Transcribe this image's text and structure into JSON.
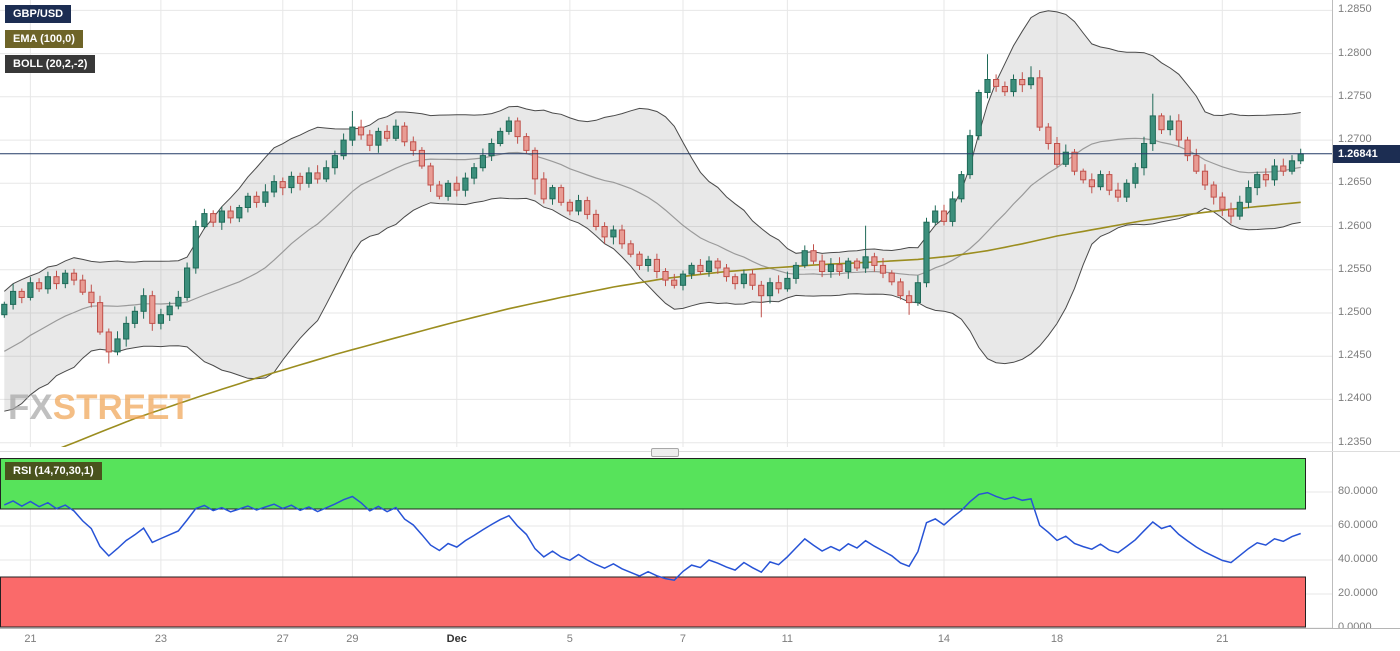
{
  "badges": {
    "symbol": "GBP/USD",
    "ema": "EMA (100,0)",
    "boll": "BOLL (20,2,-2)",
    "rsi": "RSI (14,70,30,1)"
  },
  "watermark": {
    "fx": "FX",
    "street": "STREET"
  },
  "last_price": {
    "value": 1.26841,
    "label": "1.26841"
  },
  "colors": {
    "background": "#ffffff",
    "grid": "#e7e7e7",
    "axis_line": "#bcbcbc",
    "axis_text": "#7d7d7d",
    "candle_up_fill": "#3c8f7c",
    "candle_up_stroke": "#1f6a58",
    "candle_down_fill": "#e89c94",
    "candle_down_stroke": "#c0504a",
    "boll_fill": "rgba(130,130,130,0.18)",
    "boll_line": "#4a4a4a",
    "boll_mid": "#9a9a9a",
    "ema_line": "#9b8d1f",
    "price_line": "#223a66",
    "price_badge_bg": "#1c2d52",
    "rsi_line": "#2753d6",
    "zone_green": "#57e35b",
    "zone_red": "#fa6a6a",
    "zone_border": "#222222",
    "badge_symbol_bg": "#1c2d52",
    "badge_ema_bg": "#6e6428",
    "badge_boll_bg": "#383838",
    "badge_rsi_bg": "#49531d",
    "watermark_fx": "#a6a6a6",
    "watermark_street": "#f0a352"
  },
  "chart_data": {
    "type": "candlestick",
    "symbol": "GBP/USD",
    "price_axis": {
      "min": 1.2345,
      "max": 1.2862,
      "ticks": [
        {
          "v": 1.285,
          "label": "1.2850"
        },
        {
          "v": 1.28,
          "label": "1.2800"
        },
        {
          "v": 1.275,
          "label": "1.2750"
        },
        {
          "v": 1.27,
          "label": "1.2700"
        },
        {
          "v": 1.265,
          "label": "1.2650"
        },
        {
          "v": 1.26,
          "label": "1.2600"
        },
        {
          "v": 1.255,
          "label": "1.2550"
        },
        {
          "v": 1.25,
          "label": "1.2500"
        },
        {
          "v": 1.245,
          "label": "1.2450"
        },
        {
          "v": 1.24,
          "label": "1.2400"
        },
        {
          "v": 1.235,
          "label": "1.2350"
        }
      ]
    },
    "x_ticks": [
      {
        "i": 3,
        "label": "21"
      },
      {
        "i": 18,
        "label": "23"
      },
      {
        "i": 32,
        "label": "27"
      },
      {
        "i": 40,
        "label": "29"
      },
      {
        "i": 52,
        "label": "Dec",
        "bold": true
      },
      {
        "i": 65,
        "label": "5"
      },
      {
        "i": 78,
        "label": "7"
      },
      {
        "i": 90,
        "label": "11"
      },
      {
        "i": 108,
        "label": "14"
      },
      {
        "i": 121,
        "label": "18"
      },
      {
        "i": 140,
        "label": "21"
      }
    ],
    "leadin_closes": [
      1.2398,
      1.2412,
      1.2405,
      1.2392,
      1.2415,
      1.2428,
      1.242,
      1.2442,
      1.2455,
      1.2438,
      1.2452,
      1.2468,
      1.246,
      1.2478,
      1.247,
      1.2486,
      1.2495,
      1.2488,
      1.2502,
      1.2498
    ],
    "closes": [
      1.251,
      1.2525,
      1.2518,
      1.2535,
      1.2528,
      1.2542,
      1.2534,
      1.2546,
      1.2538,
      1.2524,
      1.2512,
      1.2478,
      1.2455,
      1.247,
      1.2488,
      1.2502,
      1.252,
      1.2488,
      1.2498,
      1.2508,
      1.2518,
      1.2552,
      1.26,
      1.2615,
      1.2605,
      1.2618,
      1.261,
      1.2622,
      1.2635,
      1.2628,
      1.264,
      1.2652,
      1.2645,
      1.2658,
      1.265,
      1.2662,
      1.2655,
      1.2668,
      1.2682,
      1.27,
      1.2715,
      1.2706,
      1.2694,
      1.271,
      1.2702,
      1.2716,
      1.2698,
      1.2688,
      1.267,
      1.2648,
      1.2635,
      1.265,
      1.2642,
      1.2656,
      1.2668,
      1.2682,
      1.2696,
      1.271,
      1.2722,
      1.2704,
      1.2688,
      1.2655,
      1.2632,
      1.2645,
      1.2628,
      1.2618,
      1.263,
      1.2614,
      1.26,
      1.2588,
      1.2596,
      1.258,
      1.2568,
      1.2555,
      1.2562,
      1.2548,
      1.2538,
      1.2532,
      1.2545,
      1.2555,
      1.2548,
      1.256,
      1.2552,
      1.2542,
      1.2534,
      1.2545,
      1.2532,
      1.252,
      1.2535,
      1.2528,
      1.254,
      1.2555,
      1.2572,
      1.256,
      1.2548,
      1.2556,
      1.2548,
      1.256,
      1.2552,
      1.2565,
      1.2555,
      1.2546,
      1.2536,
      1.252,
      1.2512,
      1.2535,
      1.2605,
      1.2618,
      1.2606,
      1.2632,
      1.266,
      1.2705,
      1.2755,
      1.277,
      1.2762,
      1.2756,
      1.277,
      1.2764,
      1.2772,
      1.2715,
      1.2696,
      1.2672,
      1.2686,
      1.2664,
      1.2654,
      1.2646,
      1.266,
      1.2642,
      1.2634,
      1.265,
      1.2668,
      1.2696,
      1.2728,
      1.2712,
      1.2722,
      1.27,
      1.2682,
      1.2664,
      1.2648,
      1.2634,
      1.262,
      1.2612,
      1.2628,
      1.2645,
      1.266,
      1.2654,
      1.267,
      1.2664,
      1.2676,
      1.26841
    ],
    "extra_wicks": {
      "12": [
        0,
        0.0008
      ],
      "40": [
        0.0012,
        0
      ],
      "61": [
        0,
        0.001
      ],
      "87": [
        0,
        0.002
      ],
      "99": [
        0.003,
        0
      ],
      "104": [
        0,
        0.0008
      ],
      "113": [
        0.0026,
        0
      ],
      "118": [
        0.0008,
        0
      ],
      "132": [
        0.0018,
        0
      ]
    },
    "indicators": {
      "ema_period": 100,
      "ema_points": [
        [
          0,
          1.2318
        ],
        [
          8,
          1.235
        ],
        [
          15,
          1.2378
        ],
        [
          22,
          1.2402
        ],
        [
          30,
          1.2428
        ],
        [
          38,
          1.2452
        ],
        [
          46,
          1.2474
        ],
        [
          52,
          1.249
        ],
        [
          58,
          1.2505
        ],
        [
          64,
          1.2518
        ],
        [
          70,
          1.253
        ],
        [
          76,
          1.254
        ],
        [
          82,
          1.2547
        ],
        [
          88,
          1.2552
        ],
        [
          94,
          1.2556
        ],
        [
          100,
          1.2559
        ],
        [
          105,
          1.2562
        ],
        [
          109,
          1.2566
        ],
        [
          113,
          1.2572
        ],
        [
          117,
          1.258
        ],
        [
          121,
          1.2589
        ],
        [
          126,
          1.2598
        ],
        [
          131,
          1.2607
        ],
        [
          136,
          1.2614
        ],
        [
          141,
          1.262
        ],
        [
          145,
          1.2624
        ],
        [
          149,
          1.2628
        ]
      ],
      "boll": {
        "period": 20,
        "dev": 2
      },
      "rsi": {
        "period": 14,
        "overbought": 70,
        "oversold": 30,
        "axis_ticks": [
          {
            "v": 80,
            "label": "80.0000"
          },
          {
            "v": 60,
            "label": "60.0000"
          },
          {
            "v": 40,
            "label": "40.0000"
          },
          {
            "v": 20,
            "label": "20.0000"
          },
          {
            "v": 0,
            "label": "0.0000"
          }
        ]
      }
    }
  }
}
